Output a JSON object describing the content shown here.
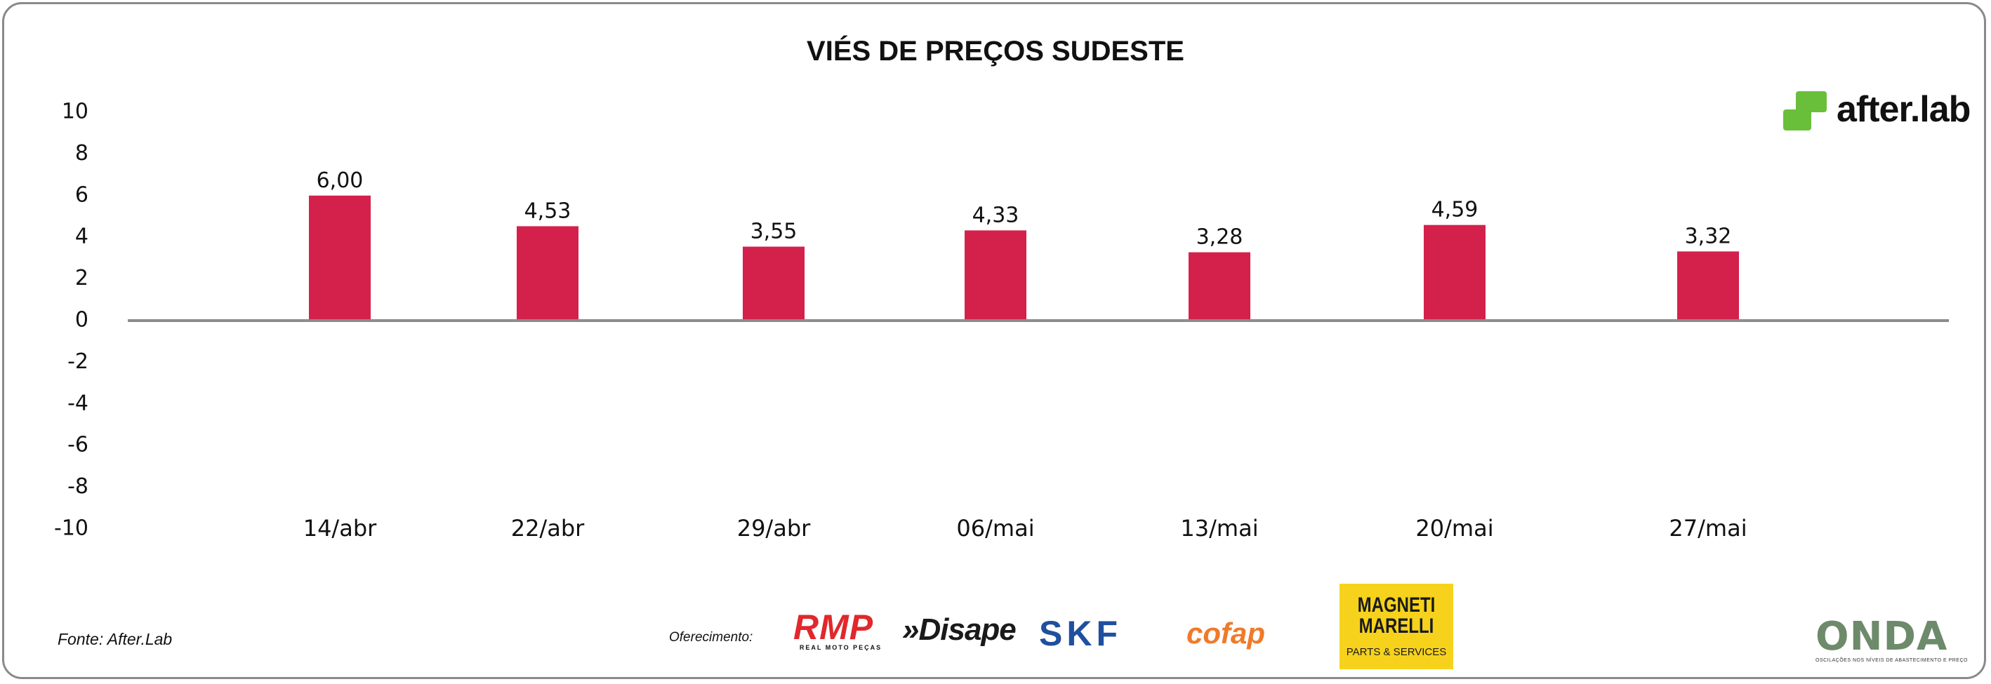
{
  "chart_data": {
    "type": "bar",
    "title": "VIÉS DE PREÇOS SUDESTE",
    "categories": [
      "14/abr",
      "22/abr",
      "29/abr",
      "06/mai",
      "13/mai",
      "20/mai",
      "27/mai"
    ],
    "series": [
      {
        "values": [
          6.0,
          4.53,
          3.55,
          4.33,
          3.28,
          4.59,
          3.32
        ],
        "data_labels": [
          "6,00",
          "4,53",
          "3,55",
          "4,33",
          "3,28",
          "4,59",
          "3,32"
        ],
        "color": "#d4214c"
      }
    ],
    "yticks": [
      "10",
      "8",
      "6",
      "4",
      "2",
      "0",
      "-2",
      "-4",
      "-6",
      "-8",
      "-10"
    ],
    "ylim": [
      -10,
      10
    ],
    "xlabel": "",
    "ylabel": "",
    "grid": false,
    "legend": "none"
  },
  "footer": {
    "source": "Fonte: After.Lab",
    "sponsor_label": "Oferecimento:"
  },
  "logos": {
    "brand": {
      "name": "after.lab",
      "icon": "after-lab-logo-icon",
      "color": "#6abf3a"
    },
    "rmp": {
      "name": "RMP",
      "subtitle": "REAL MOTO PEÇAS"
    },
    "disape": {
      "name": "»Disape"
    },
    "skf": {
      "name": "SKF"
    },
    "cofap": {
      "name": "cofap"
    },
    "magneti_marelli": {
      "line1": "MAGNETI",
      "line2": "MARELLI",
      "line3": "PARTS & SERVICES"
    },
    "onda": {
      "name": "ONDA",
      "subtitle": "OSCILAÇÕES NOS NÍVEIS DE ABASTECIMENTO E PREÇO"
    }
  },
  "colors": {
    "bar": "#d4214c",
    "baseline": "#8c8c8c",
    "frame": "#8a8a8a",
    "accent_green": "#6abf3a"
  }
}
